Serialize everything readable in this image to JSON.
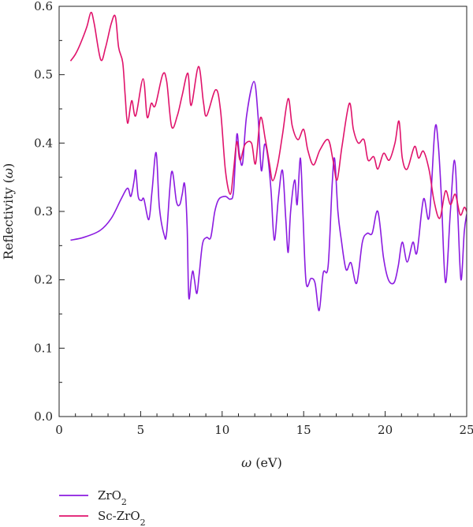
{
  "chart_data": {
    "type": "line",
    "title": "",
    "xlabel": "ω (eV)",
    "ylabel": "Reflectivity (ω)",
    "xlim": [
      0,
      25
    ],
    "ylim": [
      0.0,
      0.6
    ],
    "xticks": [
      0,
      5,
      10,
      15,
      20,
      25
    ],
    "yticks": [
      0.0,
      0.1,
      0.2,
      0.3,
      0.4,
      0.5,
      0.6
    ],
    "xtick_labels": [
      "0",
      "5",
      "10",
      "15",
      "20",
      "25"
    ],
    "ytick_labels": [
      "0.0",
      "0.1",
      "0.2",
      "0.3",
      "0.4",
      "0.5",
      "0.6"
    ],
    "grid": false,
    "legend_position": "bottom-left",
    "series": [
      {
        "name": "ZrO",
        "name_sub": "2",
        "color": "#8B1BE0",
        "points": [
          [
            0.7,
            0.258
          ],
          [
            1.5,
            0.262
          ],
          [
            2.5,
            0.272
          ],
          [
            3.2,
            0.29
          ],
          [
            3.8,
            0.318
          ],
          [
            4.2,
            0.334
          ],
          [
            4.4,
            0.322
          ],
          [
            4.6,
            0.345
          ],
          [
            4.7,
            0.36
          ],
          [
            4.85,
            0.322
          ],
          [
            5.05,
            0.316
          ],
          [
            5.2,
            0.318
          ],
          [
            5.5,
            0.288
          ],
          [
            5.7,
            0.33
          ],
          [
            5.95,
            0.386
          ],
          [
            6.15,
            0.306
          ],
          [
            6.45,
            0.265
          ],
          [
            6.6,
            0.27
          ],
          [
            6.9,
            0.358
          ],
          [
            7.2,
            0.314
          ],
          [
            7.4,
            0.31
          ],
          [
            7.55,
            0.325
          ],
          [
            7.7,
            0.34
          ],
          [
            7.85,
            0.28
          ],
          [
            7.95,
            0.175
          ],
          [
            8.1,
            0.2
          ],
          [
            8.2,
            0.213
          ],
          [
            8.3,
            0.2
          ],
          [
            8.45,
            0.18
          ],
          [
            8.6,
            0.21
          ],
          [
            8.8,
            0.253
          ],
          [
            9.05,
            0.262
          ],
          [
            9.3,
            0.262
          ],
          [
            9.55,
            0.3
          ],
          [
            9.8,
            0.318
          ],
          [
            10.2,
            0.322
          ],
          [
            10.5,
            0.318
          ],
          [
            10.7,
            0.33
          ],
          [
            10.9,
            0.412
          ],
          [
            11.05,
            0.385
          ],
          [
            11.25,
            0.37
          ],
          [
            11.5,
            0.44
          ],
          [
            11.95,
            0.49
          ],
          [
            12.2,
            0.44
          ],
          [
            12.4,
            0.36
          ],
          [
            12.6,
            0.398
          ],
          [
            12.8,
            0.38
          ],
          [
            13.0,
            0.33
          ],
          [
            13.2,
            0.258
          ],
          [
            13.45,
            0.32
          ],
          [
            13.7,
            0.36
          ],
          [
            13.9,
            0.29
          ],
          [
            14.05,
            0.24
          ],
          [
            14.2,
            0.3
          ],
          [
            14.45,
            0.346
          ],
          [
            14.6,
            0.31
          ],
          [
            14.8,
            0.378
          ],
          [
            14.95,
            0.3
          ],
          [
            15.15,
            0.196
          ],
          [
            15.45,
            0.202
          ],
          [
            15.7,
            0.195
          ],
          [
            15.95,
            0.155
          ],
          [
            16.2,
            0.21
          ],
          [
            16.5,
            0.22
          ],
          [
            16.75,
            0.34
          ],
          [
            16.9,
            0.377
          ],
          [
            17.1,
            0.3
          ],
          [
            17.3,
            0.26
          ],
          [
            17.6,
            0.215
          ],
          [
            17.9,
            0.225
          ],
          [
            18.25,
            0.195
          ],
          [
            18.6,
            0.255
          ],
          [
            18.9,
            0.268
          ],
          [
            19.2,
            0.268
          ],
          [
            19.55,
            0.3
          ],
          [
            19.9,
            0.232
          ],
          [
            20.2,
            0.2
          ],
          [
            20.55,
            0.196
          ],
          [
            20.8,
            0.22
          ],
          [
            21.05,
            0.255
          ],
          [
            21.35,
            0.226
          ],
          [
            21.7,
            0.255
          ],
          [
            21.95,
            0.24
          ],
          [
            22.35,
            0.318
          ],
          [
            22.7,
            0.292
          ],
          [
            23.05,
            0.42
          ],
          [
            23.25,
            0.4
          ],
          [
            23.45,
            0.32
          ],
          [
            23.7,
            0.196
          ],
          [
            24.0,
            0.3
          ],
          [
            24.25,
            0.375
          ],
          [
            24.45,
            0.298
          ],
          [
            24.65,
            0.2
          ],
          [
            24.85,
            0.27
          ],
          [
            25.0,
            0.296
          ]
        ]
      },
      {
        "name": "Sc-ZrO",
        "name_sub": "2",
        "color": "#E0136B",
        "points": [
          [
            0.7,
            0.52
          ],
          [
            1.0,
            0.53
          ],
          [
            1.3,
            0.545
          ],
          [
            1.7,
            0.57
          ],
          [
            1.95,
            0.591
          ],
          [
            2.15,
            0.575
          ],
          [
            2.55,
            0.522
          ],
          [
            2.85,
            0.54
          ],
          [
            3.2,
            0.575
          ],
          [
            3.45,
            0.585
          ],
          [
            3.65,
            0.54
          ],
          [
            3.9,
            0.518
          ],
          [
            4.05,
            0.47
          ],
          [
            4.2,
            0.429
          ],
          [
            4.45,
            0.462
          ],
          [
            4.7,
            0.44
          ],
          [
            5.15,
            0.494
          ],
          [
            5.4,
            0.438
          ],
          [
            5.65,
            0.458
          ],
          [
            5.9,
            0.455
          ],
          [
            6.35,
            0.5
          ],
          [
            6.6,
            0.49
          ],
          [
            6.9,
            0.424
          ],
          [
            7.25,
            0.44
          ],
          [
            7.55,
            0.47
          ],
          [
            7.9,
            0.502
          ],
          [
            8.1,
            0.455
          ],
          [
            8.55,
            0.512
          ],
          [
            8.85,
            0.46
          ],
          [
            9.05,
            0.44
          ],
          [
            9.6,
            0.478
          ],
          [
            9.9,
            0.448
          ],
          [
            10.2,
            0.36
          ],
          [
            10.5,
            0.325
          ],
          [
            10.7,
            0.36
          ],
          [
            10.9,
            0.402
          ],
          [
            11.1,
            0.375
          ],
          [
            11.4,
            0.398
          ],
          [
            11.8,
            0.4
          ],
          [
            12.05,
            0.37
          ],
          [
            12.35,
            0.437
          ],
          [
            12.65,
            0.405
          ],
          [
            12.9,
            0.37
          ],
          [
            13.1,
            0.345
          ],
          [
            13.4,
            0.368
          ],
          [
            13.7,
            0.412
          ],
          [
            14.05,
            0.465
          ],
          [
            14.3,
            0.425
          ],
          [
            14.65,
            0.405
          ],
          [
            15.0,
            0.42
          ],
          [
            15.25,
            0.39
          ],
          [
            15.6,
            0.368
          ],
          [
            16.0,
            0.39
          ],
          [
            16.5,
            0.405
          ],
          [
            16.8,
            0.375
          ],
          [
            17.05,
            0.346
          ],
          [
            17.35,
            0.395
          ],
          [
            17.8,
            0.458
          ],
          [
            18.05,
            0.42
          ],
          [
            18.35,
            0.4
          ],
          [
            18.7,
            0.405
          ],
          [
            18.95,
            0.375
          ],
          [
            19.3,
            0.38
          ],
          [
            19.55,
            0.362
          ],
          [
            19.9,
            0.385
          ],
          [
            20.25,
            0.375
          ],
          [
            20.6,
            0.4
          ],
          [
            20.85,
            0.432
          ],
          [
            21.05,
            0.378
          ],
          [
            21.35,
            0.362
          ],
          [
            21.8,
            0.395
          ],
          [
            22.05,
            0.378
          ],
          [
            22.35,
            0.388
          ],
          [
            22.7,
            0.36
          ],
          [
            23.0,
            0.315
          ],
          [
            23.35,
            0.29
          ],
          [
            23.7,
            0.33
          ],
          [
            24.0,
            0.31
          ],
          [
            24.3,
            0.325
          ],
          [
            24.6,
            0.295
          ],
          [
            24.85,
            0.306
          ],
          [
            25.0,
            0.3
          ]
        ]
      }
    ]
  }
}
